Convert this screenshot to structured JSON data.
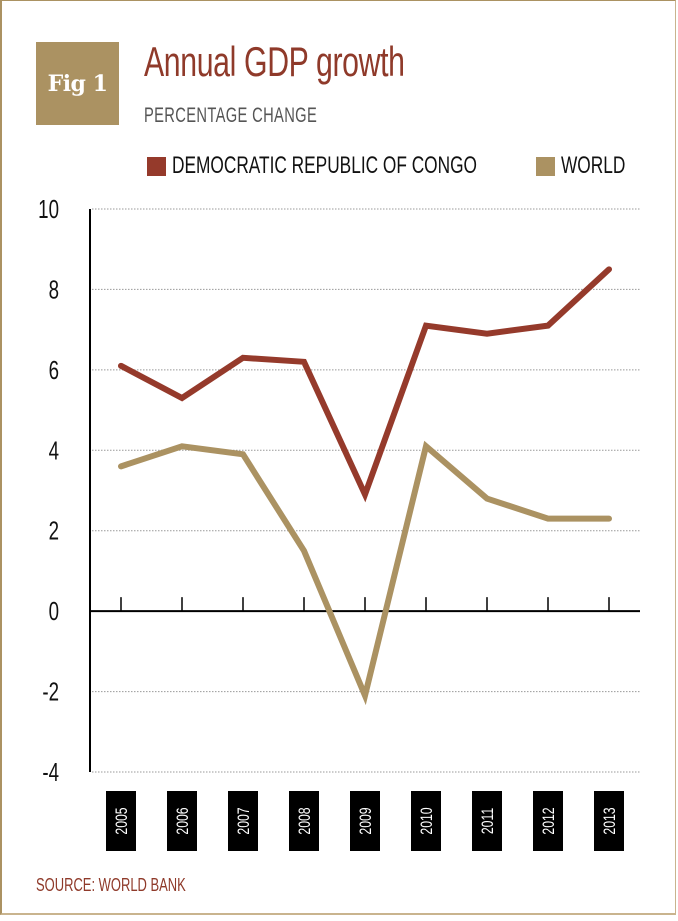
{
  "figure": {
    "badge": "Fig 1",
    "title": "Annual GDP growth",
    "subtitle": "PERCENTAGE CHANGE",
    "source": "SOURCE: WORLD BANK"
  },
  "colors": {
    "drc": "#953a2b",
    "world": "#ab9262",
    "border": "#ab9262",
    "axis": "#000000",
    "grid": "#999999",
    "year_box": "#000000"
  },
  "chart_data": {
    "type": "line",
    "title": "Annual GDP growth",
    "subtitle": "PERCENTAGE CHANGE",
    "xlabel": "",
    "ylabel": "",
    "x": [
      "2005",
      "2006",
      "2007",
      "2008",
      "2009",
      "2010",
      "2011",
      "2012",
      "2013"
    ],
    "yticks": [
      "10",
      "8",
      "6",
      "4",
      "2",
      "0",
      "-2",
      "-4"
    ],
    "ylim": [
      -4,
      10
    ],
    "grid": true,
    "legend_position": "top-right",
    "series": [
      {
        "name": "DEMOCRATIC REPUBLIC OF CONGO",
        "color": "#953a2b",
        "values": [
          6.1,
          5.3,
          6.3,
          6.2,
          2.9,
          7.1,
          6.9,
          7.1,
          8.5
        ]
      },
      {
        "name": "WORLD",
        "color": "#ab9262",
        "values": [
          3.6,
          4.1,
          3.9,
          1.5,
          -2.1,
          4.1,
          2.8,
          2.3,
          2.3
        ]
      }
    ],
    "source": "SOURCE: WORLD BANK"
  }
}
